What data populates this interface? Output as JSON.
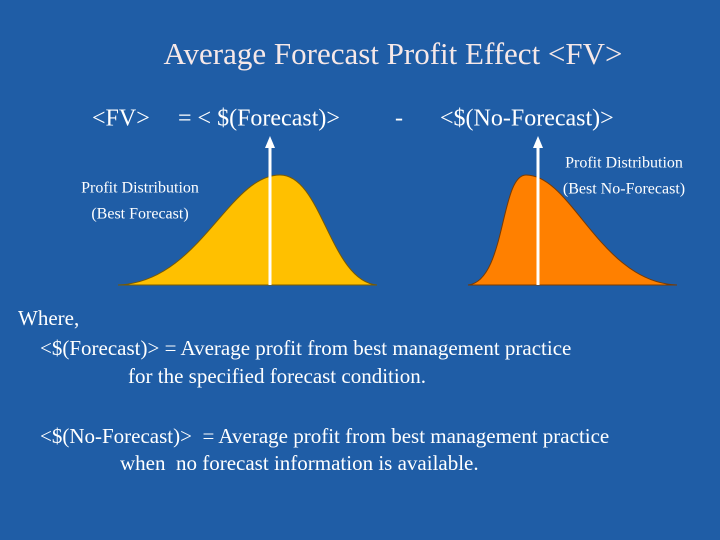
{
  "title": "Average Forecast Profit Effect <FV>",
  "equation": {
    "lhs": "<FV>",
    "forecast": "= < $(Forecast)>",
    "minus": "-",
    "no_forecast": "<$(No-Forecast)>"
  },
  "curves": [
    {
      "label_lines": [
        "Profit Distribution",
        "(Best Forecast)"
      ]
    },
    {
      "label_lines": [
        "Profit Distribution",
        "(Best No-Forecast)"
      ]
    }
  ],
  "definitions": {
    "intro": "Where,",
    "items": [
      {
        "lines": [
          "<$(Forecast)> = Average profit from best management practice",
          "for the specified forecast condition."
        ]
      },
      {
        "lines": [
          "<$(No-Forecast)>  = Average profit from best management practice",
          "when  no forecast information is available."
        ]
      }
    ]
  }
}
